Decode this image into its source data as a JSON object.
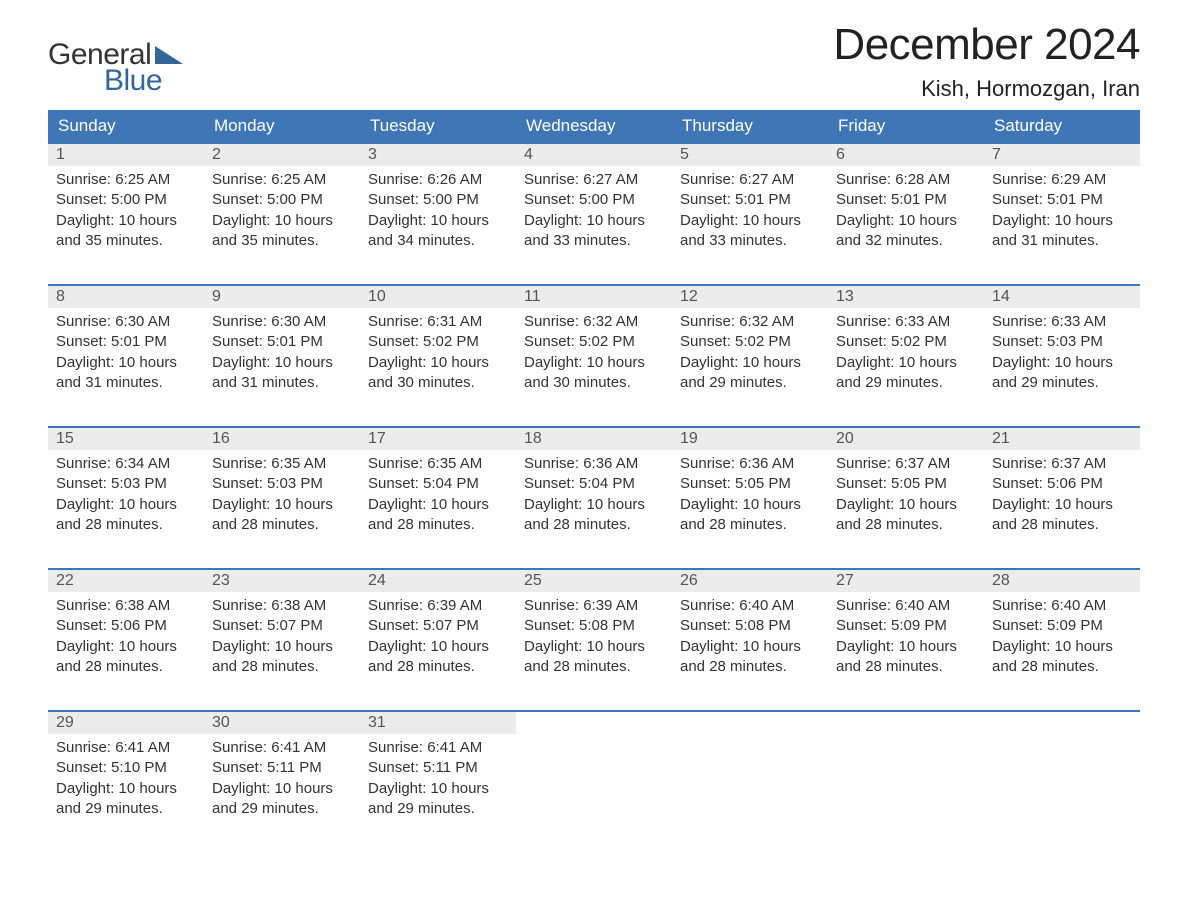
{
  "brand": {
    "word1": "General",
    "word2": "Blue",
    "word1_color": "#333333",
    "word2_color": "#336699",
    "triangle_color": "#336699"
  },
  "title": "December 2024",
  "location": "Kish, Hormozgan, Iran",
  "colors": {
    "header_bg": "#3f76b5",
    "header_text": "#ffffff",
    "daynum_bg": "#ececec",
    "daynum_text": "#555555",
    "body_text": "#333333",
    "row_border": "#3f76b5",
    "page_bg": "#ffffff"
  },
  "fonts": {
    "family": "Arial, Helvetica, sans-serif",
    "title_size_pt": 33,
    "location_size_pt": 17,
    "header_size_pt": 13,
    "daynum_size_pt": 12,
    "body_size_pt": 11
  },
  "day_headers": [
    "Sunday",
    "Monday",
    "Tuesday",
    "Wednesday",
    "Thursday",
    "Friday",
    "Saturday"
  ],
  "weeks": [
    [
      {
        "n": "1",
        "sr": "Sunrise: 6:25 AM",
        "ss": "Sunset: 5:00 PM",
        "d1": "Daylight: 10 hours",
        "d2": "and 35 minutes."
      },
      {
        "n": "2",
        "sr": "Sunrise: 6:25 AM",
        "ss": "Sunset: 5:00 PM",
        "d1": "Daylight: 10 hours",
        "d2": "and 35 minutes."
      },
      {
        "n": "3",
        "sr": "Sunrise: 6:26 AM",
        "ss": "Sunset: 5:00 PM",
        "d1": "Daylight: 10 hours",
        "d2": "and 34 minutes."
      },
      {
        "n": "4",
        "sr": "Sunrise: 6:27 AM",
        "ss": "Sunset: 5:00 PM",
        "d1": "Daylight: 10 hours",
        "d2": "and 33 minutes."
      },
      {
        "n": "5",
        "sr": "Sunrise: 6:27 AM",
        "ss": "Sunset: 5:01 PM",
        "d1": "Daylight: 10 hours",
        "d2": "and 33 minutes."
      },
      {
        "n": "6",
        "sr": "Sunrise: 6:28 AM",
        "ss": "Sunset: 5:01 PM",
        "d1": "Daylight: 10 hours",
        "d2": "and 32 minutes."
      },
      {
        "n": "7",
        "sr": "Sunrise: 6:29 AM",
        "ss": "Sunset: 5:01 PM",
        "d1": "Daylight: 10 hours",
        "d2": "and 31 minutes."
      }
    ],
    [
      {
        "n": "8",
        "sr": "Sunrise: 6:30 AM",
        "ss": "Sunset: 5:01 PM",
        "d1": "Daylight: 10 hours",
        "d2": "and 31 minutes."
      },
      {
        "n": "9",
        "sr": "Sunrise: 6:30 AM",
        "ss": "Sunset: 5:01 PM",
        "d1": "Daylight: 10 hours",
        "d2": "and 31 minutes."
      },
      {
        "n": "10",
        "sr": "Sunrise: 6:31 AM",
        "ss": "Sunset: 5:02 PM",
        "d1": "Daylight: 10 hours",
        "d2": "and 30 minutes."
      },
      {
        "n": "11",
        "sr": "Sunrise: 6:32 AM",
        "ss": "Sunset: 5:02 PM",
        "d1": "Daylight: 10 hours",
        "d2": "and 30 minutes."
      },
      {
        "n": "12",
        "sr": "Sunrise: 6:32 AM",
        "ss": "Sunset: 5:02 PM",
        "d1": "Daylight: 10 hours",
        "d2": "and 29 minutes."
      },
      {
        "n": "13",
        "sr": "Sunrise: 6:33 AM",
        "ss": "Sunset: 5:02 PM",
        "d1": "Daylight: 10 hours",
        "d2": "and 29 minutes."
      },
      {
        "n": "14",
        "sr": "Sunrise: 6:33 AM",
        "ss": "Sunset: 5:03 PM",
        "d1": "Daylight: 10 hours",
        "d2": "and 29 minutes."
      }
    ],
    [
      {
        "n": "15",
        "sr": "Sunrise: 6:34 AM",
        "ss": "Sunset: 5:03 PM",
        "d1": "Daylight: 10 hours",
        "d2": "and 28 minutes."
      },
      {
        "n": "16",
        "sr": "Sunrise: 6:35 AM",
        "ss": "Sunset: 5:03 PM",
        "d1": "Daylight: 10 hours",
        "d2": "and 28 minutes."
      },
      {
        "n": "17",
        "sr": "Sunrise: 6:35 AM",
        "ss": "Sunset: 5:04 PM",
        "d1": "Daylight: 10 hours",
        "d2": "and 28 minutes."
      },
      {
        "n": "18",
        "sr": "Sunrise: 6:36 AM",
        "ss": "Sunset: 5:04 PM",
        "d1": "Daylight: 10 hours",
        "d2": "and 28 minutes."
      },
      {
        "n": "19",
        "sr": "Sunrise: 6:36 AM",
        "ss": "Sunset: 5:05 PM",
        "d1": "Daylight: 10 hours",
        "d2": "and 28 minutes."
      },
      {
        "n": "20",
        "sr": "Sunrise: 6:37 AM",
        "ss": "Sunset: 5:05 PM",
        "d1": "Daylight: 10 hours",
        "d2": "and 28 minutes."
      },
      {
        "n": "21",
        "sr": "Sunrise: 6:37 AM",
        "ss": "Sunset: 5:06 PM",
        "d1": "Daylight: 10 hours",
        "d2": "and 28 minutes."
      }
    ],
    [
      {
        "n": "22",
        "sr": "Sunrise: 6:38 AM",
        "ss": "Sunset: 5:06 PM",
        "d1": "Daylight: 10 hours",
        "d2": "and 28 minutes."
      },
      {
        "n": "23",
        "sr": "Sunrise: 6:38 AM",
        "ss": "Sunset: 5:07 PM",
        "d1": "Daylight: 10 hours",
        "d2": "and 28 minutes."
      },
      {
        "n": "24",
        "sr": "Sunrise: 6:39 AM",
        "ss": "Sunset: 5:07 PM",
        "d1": "Daylight: 10 hours",
        "d2": "and 28 minutes."
      },
      {
        "n": "25",
        "sr": "Sunrise: 6:39 AM",
        "ss": "Sunset: 5:08 PM",
        "d1": "Daylight: 10 hours",
        "d2": "and 28 minutes."
      },
      {
        "n": "26",
        "sr": "Sunrise: 6:40 AM",
        "ss": "Sunset: 5:08 PM",
        "d1": "Daylight: 10 hours",
        "d2": "and 28 minutes."
      },
      {
        "n": "27",
        "sr": "Sunrise: 6:40 AM",
        "ss": "Sunset: 5:09 PM",
        "d1": "Daylight: 10 hours",
        "d2": "and 28 minutes."
      },
      {
        "n": "28",
        "sr": "Sunrise: 6:40 AM",
        "ss": "Sunset: 5:09 PM",
        "d1": "Daylight: 10 hours",
        "d2": "and 28 minutes."
      }
    ],
    [
      {
        "n": "29",
        "sr": "Sunrise: 6:41 AM",
        "ss": "Sunset: 5:10 PM",
        "d1": "Daylight: 10 hours",
        "d2": "and 29 minutes."
      },
      {
        "n": "30",
        "sr": "Sunrise: 6:41 AM",
        "ss": "Sunset: 5:11 PM",
        "d1": "Daylight: 10 hours",
        "d2": "and 29 minutes."
      },
      {
        "n": "31",
        "sr": "Sunrise: 6:41 AM",
        "ss": "Sunset: 5:11 PM",
        "d1": "Daylight: 10 hours",
        "d2": "and 29 minutes."
      },
      null,
      null,
      null,
      null
    ]
  ]
}
